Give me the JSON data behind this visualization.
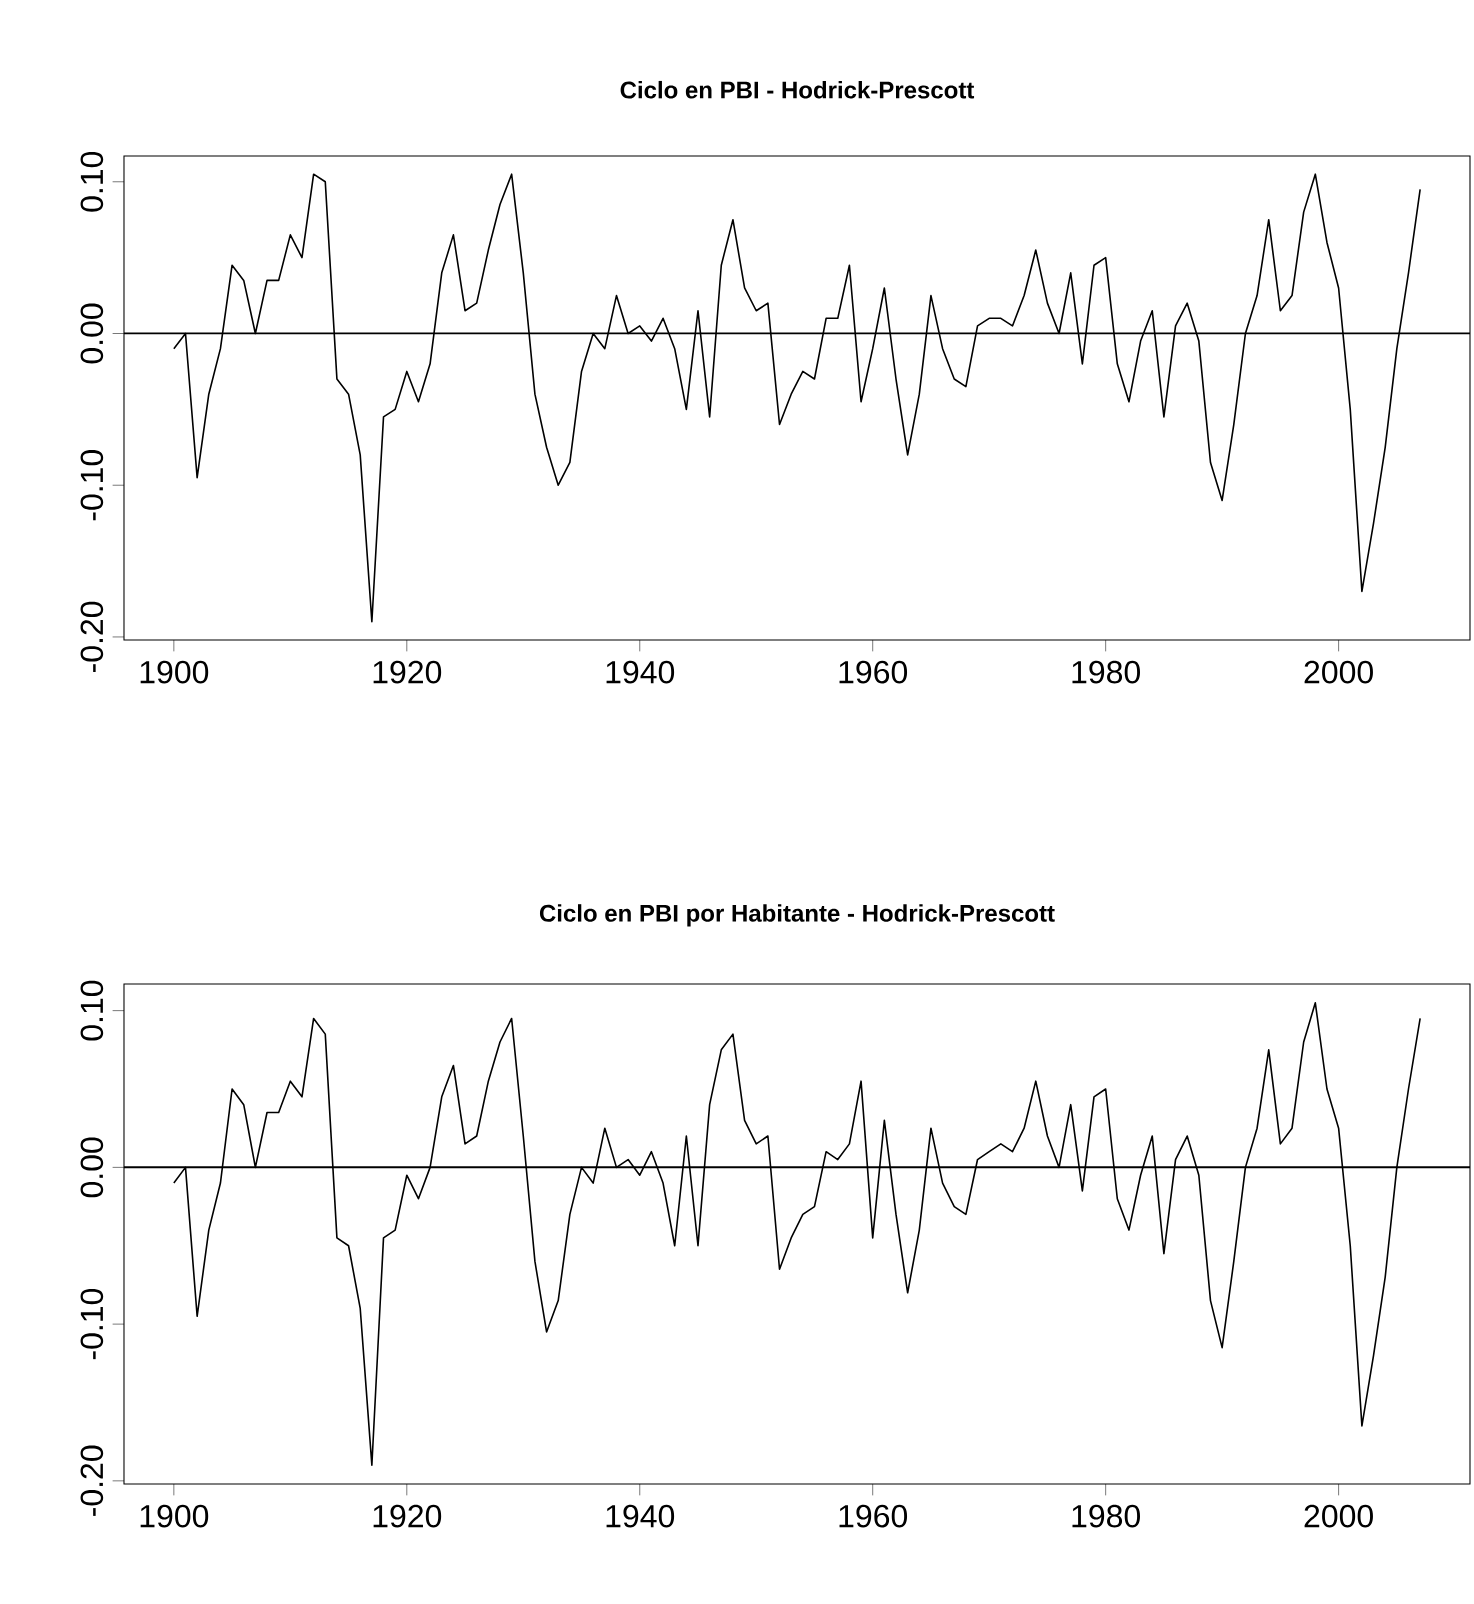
{
  "chart_data": [
    {
      "type": "line",
      "title": "Ciclo en PBI - Hodrick-Prescott",
      "x": [
        1900,
        1901,
        1902,
        1903,
        1904,
        1905,
        1906,
        1907,
        1908,
        1909,
        1910,
        1911,
        1912,
        1913,
        1914,
        1915,
        1916,
        1917,
        1918,
        1919,
        1920,
        1921,
        1922,
        1923,
        1924,
        1925,
        1926,
        1927,
        1928,
        1929,
        1930,
        1931,
        1932,
        1933,
        1934,
        1935,
        1936,
        1937,
        1938,
        1939,
        1940,
        1941,
        1942,
        1943,
        1944,
        1945,
        1946,
        1947,
        1948,
        1949,
        1950,
        1951,
        1952,
        1953,
        1954,
        1955,
        1956,
        1957,
        1958,
        1959,
        1960,
        1961,
        1962,
        1963,
        1964,
        1965,
        1966,
        1967,
        1968,
        1969,
        1970,
        1971,
        1972,
        1973,
        1974,
        1975,
        1976,
        1977,
        1978,
        1979,
        1980,
        1981,
        1982,
        1983,
        1984,
        1985,
        1986,
        1987,
        1988,
        1989,
        1990,
        1991,
        1992,
        1993,
        1994,
        1995,
        1996,
        1997,
        1998,
        1999,
        2000,
        2001,
        2002,
        2003,
        2004,
        2005,
        2006,
        2007
      ],
      "values": [
        -0.01,
        0.0,
        -0.095,
        -0.04,
        -0.01,
        0.045,
        0.035,
        0.0,
        0.035,
        0.035,
        0.065,
        0.05,
        0.105,
        0.1,
        -0.03,
        -0.04,
        -0.08,
        -0.19,
        -0.055,
        -0.05,
        -0.025,
        -0.045,
        -0.02,
        0.04,
        0.065,
        0.015,
        0.02,
        0.055,
        0.085,
        0.105,
        0.04,
        -0.04,
        -0.075,
        -0.1,
        -0.085,
        -0.025,
        0.0,
        -0.01,
        0.025,
        0.0,
        0.005,
        -0.005,
        0.01,
        -0.01,
        -0.05,
        0.015,
        -0.055,
        0.045,
        0.075,
        0.03,
        0.015,
        0.02,
        -0.06,
        -0.04,
        -0.025,
        -0.03,
        0.01,
        0.01,
        0.045,
        -0.045,
        -0.01,
        0.03,
        -0.03,
        -0.08,
        -0.04,
        0.025,
        -0.01,
        -0.03,
        -0.035,
        0.005,
        0.01,
        0.01,
        0.005,
        0.025,
        0.055,
        0.02,
        0.0,
        0.04,
        -0.02,
        0.045,
        0.05,
        -0.02,
        -0.045,
        -0.005,
        0.015,
        -0.055,
        0.005,
        0.02,
        -0.005,
        -0.085,
        -0.11,
        -0.06,
        0.0,
        0.025,
        0.075,
        0.015,
        0.025,
        0.08,
        0.105,
        0.06,
        0.03,
        -0.05,
        -0.17,
        -0.125,
        -0.075,
        -0.01,
        0.04,
        0.095
      ],
      "color": "#000000",
      "xlim": [
        1895.72,
        2011.28
      ],
      "ylim": [
        -0.202,
        0.117
      ],
      "xticks": [
        1900,
        1920,
        1940,
        1960,
        1980,
        2000
      ],
      "yticks": [
        {
          "value": -0.2,
          "label": "-0.20"
        },
        {
          "value": -0.1,
          "label": "-0.10"
        },
        {
          "value": 0.0,
          "label": "0.00"
        },
        {
          "value": 0.1,
          "label": "0.10"
        }
      ],
      "ref_lines": [
        {
          "axis": "y",
          "value": 0,
          "color": "#000000"
        }
      ]
    },
    {
      "type": "line",
      "title": "Ciclo en PBI por Habitante - Hodrick-Prescott",
      "x": [
        1900,
        1901,
        1902,
        1903,
        1904,
        1905,
        1906,
        1907,
        1908,
        1909,
        1910,
        1911,
        1912,
        1913,
        1914,
        1915,
        1916,
        1917,
        1918,
        1919,
        1920,
        1921,
        1922,
        1923,
        1924,
        1925,
        1926,
        1927,
        1928,
        1929,
        1930,
        1931,
        1932,
        1933,
        1934,
        1935,
        1936,
        1937,
        1938,
        1939,
        1940,
        1941,
        1942,
        1943,
        1944,
        1945,
        1946,
        1947,
        1948,
        1949,
        1950,
        1951,
        1952,
        1953,
        1954,
        1955,
        1956,
        1957,
        1958,
        1959,
        1960,
        1961,
        1962,
        1963,
        1964,
        1965,
        1966,
        1967,
        1968,
        1969,
        1970,
        1971,
        1972,
        1973,
        1974,
        1975,
        1976,
        1977,
        1978,
        1979,
        1980,
        1981,
        1982,
        1983,
        1984,
        1985,
        1986,
        1987,
        1988,
        1989,
        1990,
        1991,
        1992,
        1993,
        1994,
        1995,
        1996,
        1997,
        1998,
        1999,
        2000,
        2001,
        2002,
        2003,
        2004,
        2005,
        2006,
        2007
      ],
      "values": [
        -0.01,
        0.0,
        -0.095,
        -0.04,
        -0.01,
        0.05,
        0.04,
        0.0,
        0.035,
        0.035,
        0.055,
        0.045,
        0.095,
        0.085,
        -0.045,
        -0.05,
        -0.09,
        -0.19,
        -0.045,
        -0.04,
        -0.005,
        -0.02,
        0.0,
        0.045,
        0.065,
        0.015,
        0.02,
        0.055,
        0.08,
        0.095,
        0.02,
        -0.06,
        -0.105,
        -0.085,
        -0.03,
        0.0,
        -0.01,
        0.025,
        0.0,
        0.005,
        -0.005,
        0.01,
        -0.01,
        -0.05,
        0.02,
        -0.05,
        0.04,
        0.075,
        0.085,
        0.03,
        0.015,
        0.02,
        -0.065,
        -0.045,
        -0.03,
        -0.025,
        0.01,
        0.005,
        0.015,
        0.055,
        -0.045,
        0.03,
        -0.03,
        -0.08,
        -0.04,
        0.025,
        -0.01,
        -0.025,
        -0.03,
        0.005,
        0.01,
        0.015,
        0.01,
        0.025,
        0.055,
        0.02,
        0.0,
        0.04,
        -0.015,
        0.045,
        0.05,
        -0.02,
        -0.04,
        -0.005,
        0.02,
        -0.055,
        0.005,
        0.02,
        -0.005,
        -0.085,
        -0.115,
        -0.06,
        0.0,
        0.025,
        0.075,
        0.015,
        0.025,
        0.08,
        0.105,
        0.05,
        0.025,
        -0.05,
        -0.165,
        -0.12,
        -0.07,
        0.0,
        0.05,
        0.095
      ],
      "color": "#000000",
      "xlim": [
        1895.72,
        2011.28
      ],
      "ylim": [
        -0.202,
        0.117
      ],
      "xticks": [
        1900,
        1920,
        1940,
        1960,
        1980,
        2000
      ],
      "yticks": [
        {
          "value": -0.2,
          "label": "-0.20"
        },
        {
          "value": -0.1,
          "label": "-0.10"
        },
        {
          "value": 0.0,
          "label": "0.00"
        },
        {
          "value": 0.1,
          "label": "0.10"
        }
      ],
      "ref_lines": [
        {
          "axis": "y",
          "value": 0,
          "color": "#000000"
        }
      ]
    }
  ]
}
